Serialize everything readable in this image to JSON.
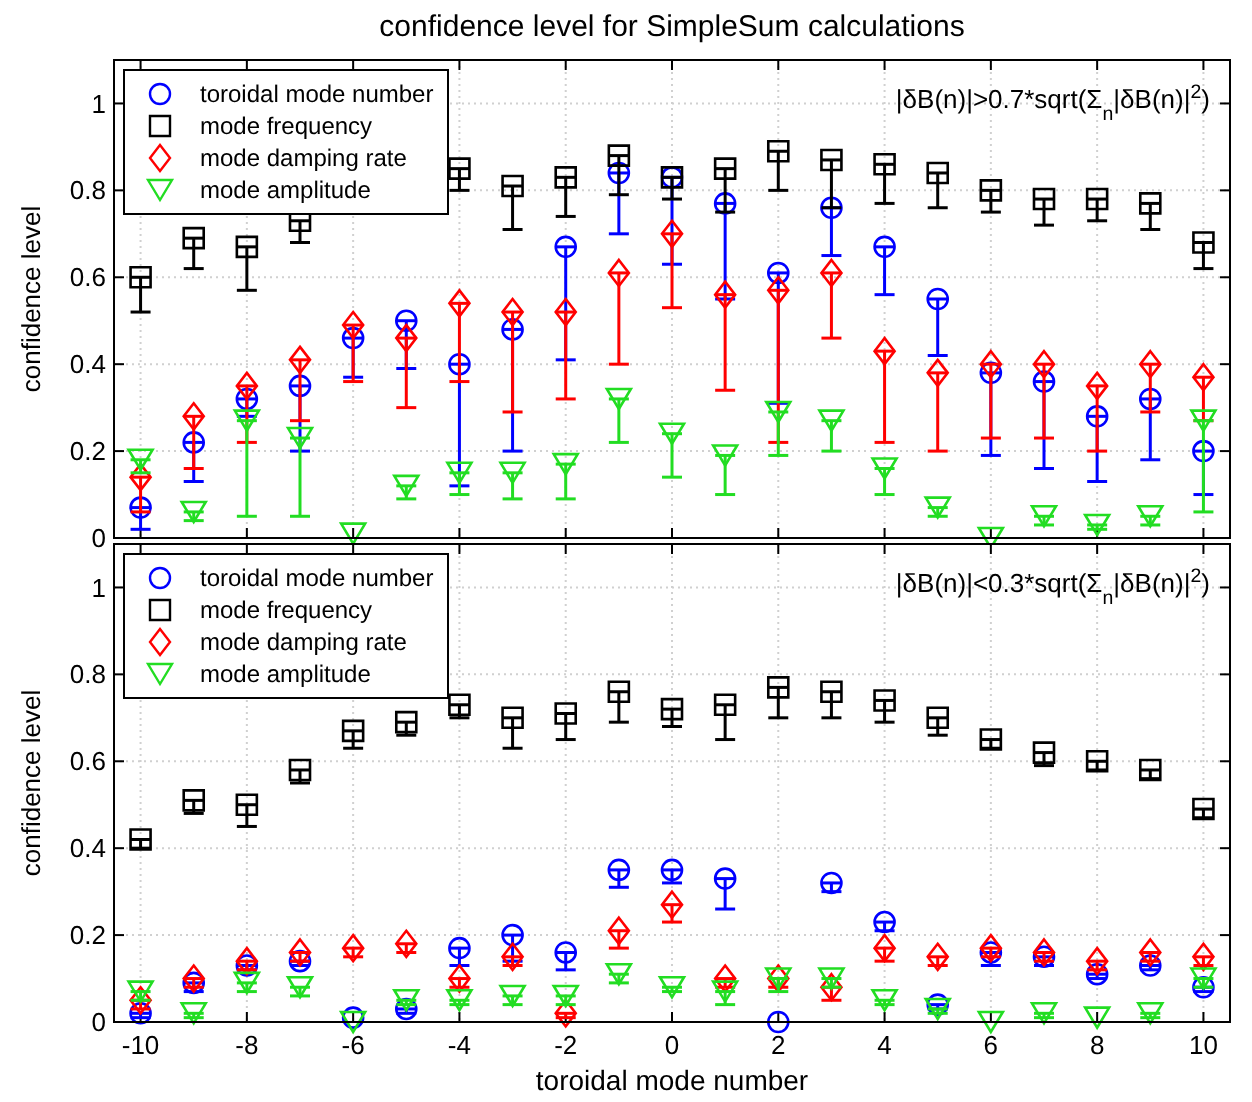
{
  "chart_data": [
    {
      "type": "scatter",
      "title": "confidence level for SimpleSum calculations",
      "ylabel": "confidence level",
      "annotations": [
        "|δB(n)|>0.7*sqrt(Σ$_{n}$|δB(n)|$^{2}$)"
      ],
      "x": [
        -10,
        -9,
        -8,
        -7,
        -6,
        -5,
        -4,
        -3,
        -2,
        -1,
        0,
        1,
        2,
        3,
        4,
        5,
        6,
        7,
        8,
        9,
        10
      ],
      "xlim": [
        -10.5,
        10.5
      ],
      "xticks": [
        -10,
        -8,
        -6,
        -4,
        -2,
        0,
        2,
        4,
        6,
        8,
        10
      ],
      "ylim": [
        0,
        1.1
      ],
      "yticks": [
        0,
        0.2,
        0.4,
        0.6,
        0.8,
        1
      ],
      "grid": true,
      "legend": "top left",
      "tick_labels": "y",
      "series": [
        {
          "name": "toroidal mode number",
          "color": "#0000ff",
          "marker": "circle",
          "values": [
            0.07,
            0.22,
            0.32,
            0.35,
            0.46,
            0.5,
            0.4,
            0.48,
            0.67,
            0.84,
            0.83,
            0.77,
            0.61,
            0.76,
            0.67,
            0.55,
            0.38,
            0.36,
            0.28,
            0.32,
            0.2
          ],
          "errors": [
            [
              0.02,
              0.07
            ],
            [
              0.13,
              0.22
            ],
            [
              0.28,
              0.32
            ],
            [
              0.2,
              0.35
            ],
            [
              0.37,
              0.46
            ],
            [
              0.39,
              0.5
            ],
            [
              0.12,
              0.4
            ],
            [
              0.2,
              0.48
            ],
            [
              0.41,
              0.67
            ],
            [
              0.7,
              0.84
            ],
            [
              0.63,
              0.83
            ],
            [
              0.55,
              0.77
            ],
            [
              0.31,
              0.61
            ],
            [
              0.65,
              0.76
            ],
            [
              0.56,
              0.67
            ],
            [
              0.42,
              0.55
            ],
            [
              0.19,
              0.38
            ],
            [
              0.16,
              0.36
            ],
            [
              0.13,
              0.28
            ],
            [
              0.18,
              0.32
            ],
            [
              0.1,
              0.2
            ]
          ]
        },
        {
          "name": "mode frequency",
          "color": "#000000",
          "marker": "square",
          "values": [
            0.6,
            0.69,
            0.67,
            0.73,
            null,
            null,
            0.85,
            0.81,
            0.83,
            0.88,
            0.83,
            0.85,
            0.89,
            0.87,
            0.86,
            0.84,
            0.8,
            0.78,
            0.78,
            0.77,
            0.68
          ],
          "errors": [
            [
              0.52,
              0.6
            ],
            [
              0.62,
              0.69
            ],
            [
              0.57,
              0.67
            ],
            [
              0.68,
              0.73
            ],
            null,
            null,
            [
              0.8,
              0.85
            ],
            [
              0.71,
              0.81
            ],
            [
              0.74,
              0.83
            ],
            [
              0.79,
              0.88
            ],
            [
              0.78,
              0.83
            ],
            [
              0.75,
              0.85
            ],
            [
              0.8,
              0.89
            ],
            [
              0.76,
              0.87
            ],
            [
              0.77,
              0.86
            ],
            [
              0.76,
              0.84
            ],
            [
              0.75,
              0.8
            ],
            [
              0.72,
              0.78
            ],
            [
              0.73,
              0.78
            ],
            [
              0.71,
              0.77
            ],
            [
              0.62,
              0.68
            ]
          ]
        },
        {
          "name": "mode damping rate",
          "color": "#ff0000",
          "marker": "diamond",
          "values": [
            0.14,
            0.28,
            0.35,
            0.41,
            0.49,
            0.46,
            0.54,
            0.52,
            0.52,
            0.61,
            0.7,
            0.56,
            0.57,
            0.61,
            0.43,
            0.38,
            0.4,
            0.4,
            0.35,
            0.4,
            0.37
          ],
          "errors": [
            [
              0.06,
              0.14
            ],
            [
              0.16,
              0.28
            ],
            [
              0.22,
              0.35
            ],
            [
              0.27,
              0.41
            ],
            [
              0.36,
              0.49
            ],
            [
              0.3,
              0.46
            ],
            [
              0.36,
              0.54
            ],
            [
              0.29,
              0.52
            ],
            [
              0.32,
              0.52
            ],
            [
              0.4,
              0.61
            ],
            [
              0.53,
              0.7
            ],
            [
              0.34,
              0.56
            ],
            [
              0.22,
              0.57
            ],
            [
              0.46,
              0.61
            ],
            [
              0.22,
              0.43
            ],
            [
              0.2,
              0.38
            ],
            [
              0.23,
              0.4
            ],
            [
              0.23,
              0.4
            ],
            [
              0.2,
              0.35
            ],
            [
              0.29,
              0.4
            ],
            [
              0.27,
              0.37
            ]
          ]
        },
        {
          "name": "mode amplitude",
          "color": "#22dd22",
          "marker": "triangle",
          "values": [
            0.18,
            0.06,
            0.27,
            0.23,
            0.01,
            0.12,
            0.15,
            0.15,
            0.17,
            0.32,
            0.24,
            0.19,
            0.29,
            0.27,
            0.16,
            0.07,
            0,
            0.05,
            0.03,
            0.05,
            0.27
          ],
          "errors": [
            [
              0.15,
              0.18
            ],
            [
              0.04,
              0.06
            ],
            [
              0.05,
              0.27
            ],
            [
              0.05,
              0.23
            ],
            null,
            [
              0.09,
              0.12
            ],
            [
              0.1,
              0.15
            ],
            [
              0.09,
              0.15
            ],
            [
              0.09,
              0.17
            ],
            [
              0.22,
              0.32
            ],
            [
              0.14,
              0.24
            ],
            [
              0.1,
              0.19
            ],
            [
              0.19,
              0.29
            ],
            [
              0.2,
              0.27
            ],
            [
              0.1,
              0.16
            ],
            [
              0.05,
              0.07
            ],
            null,
            [
              0.03,
              0.05
            ],
            [
              0.02,
              0.03
            ],
            [
              0.03,
              0.05
            ],
            [
              0.06,
              0.27
            ]
          ]
        }
      ]
    },
    {
      "type": "scatter",
      "xlabel": "toroidal mode number",
      "ylabel": "confidence level",
      "annotations": [
        "|δB(n)|<0.3*sqrt(Σ$_{n}$|δB(n)|$^{2}$)"
      ],
      "x": [
        -10,
        -9,
        -8,
        -7,
        -6,
        -5,
        -4,
        -3,
        -2,
        -1,
        0,
        1,
        2,
        3,
        4,
        5,
        6,
        7,
        8,
        9,
        10
      ],
      "xlim": [
        -10.5,
        10.5
      ],
      "xticks": [
        -10,
        -8,
        -6,
        -4,
        -2,
        0,
        2,
        4,
        6,
        8,
        10
      ],
      "ylim": [
        0,
        1.1
      ],
      "yticks": [
        0,
        0.2,
        0.4,
        0.6,
        0.8,
        1
      ],
      "grid": true,
      "legend": "top left",
      "series": [
        {
          "name": "toroidal mode number",
          "color": "#0000ff",
          "marker": "circle",
          "values": [
            0.02,
            0.09,
            0.13,
            0.14,
            0.01,
            0.03,
            0.17,
            0.2,
            0.16,
            0.35,
            0.35,
            0.33,
            0,
            0.32,
            0.23,
            0.04,
            0.16,
            0.15,
            0.11,
            0.13,
            0.08
          ],
          "errors": [
            [
              0.01,
              0.02
            ],
            [
              0.07,
              0.09
            ],
            [
              0.12,
              0.13
            ],
            [
              0.13,
              0.14
            ],
            null,
            [
              0.02,
              0.03
            ],
            [
              0.13,
              0.17
            ],
            [
              0.14,
              0.2
            ],
            [
              0.12,
              0.16
            ],
            [
              0.31,
              0.35
            ],
            [
              0.32,
              0.35
            ],
            [
              0.26,
              0.33
            ],
            null,
            [
              0.3,
              0.32
            ],
            [
              0.21,
              0.23
            ],
            [
              0.03,
              0.04
            ],
            [
              0.13,
              0.16
            ],
            [
              0.13,
              0.15
            ],
            [
              0.1,
              0.11
            ],
            [
              0.12,
              0.13
            ],
            [
              0.07,
              0.08
            ]
          ]
        },
        {
          "name": "mode frequency",
          "color": "#000000",
          "marker": "square",
          "values": [
            0.42,
            0.51,
            0.5,
            0.58,
            0.67,
            0.69,
            0.73,
            0.7,
            0.71,
            0.76,
            0.72,
            0.73,
            0.77,
            0.76,
            0.74,
            0.7,
            0.65,
            0.62,
            0.6,
            0.58,
            0.49
          ],
          "errors": [
            [
              0.4,
              0.42
            ],
            [
              0.48,
              0.51
            ],
            [
              0.45,
              0.5
            ],
            [
              0.55,
              0.58
            ],
            [
              0.63,
              0.67
            ],
            [
              0.66,
              0.69
            ],
            [
              0.7,
              0.73
            ],
            [
              0.63,
              0.7
            ],
            [
              0.65,
              0.71
            ],
            [
              0.69,
              0.76
            ],
            [
              0.68,
              0.72
            ],
            [
              0.65,
              0.73
            ],
            [
              0.7,
              0.77
            ],
            [
              0.7,
              0.76
            ],
            [
              0.69,
              0.74
            ],
            [
              0.66,
              0.7
            ],
            [
              0.63,
              0.65
            ],
            [
              0.59,
              0.62
            ],
            [
              0.58,
              0.6
            ],
            [
              0.56,
              0.58
            ],
            [
              0.47,
              0.49
            ]
          ]
        },
        {
          "name": "mode damping rate",
          "color": "#ff0000",
          "marker": "diamond",
          "values": [
            0.05,
            0.1,
            0.14,
            0.16,
            0.17,
            0.18,
            0.1,
            0.15,
            0.02,
            0.21,
            0.27,
            0.1,
            0.1,
            0.08,
            0.17,
            0.15,
            0.17,
            0.16,
            0.14,
            0.16,
            0.15
          ],
          "errors": [
            [
              0.03,
              0.05
            ],
            [
              0.08,
              0.1
            ],
            [
              0.12,
              0.14
            ],
            [
              0.14,
              0.16
            ],
            [
              0.15,
              0.17
            ],
            [
              0.16,
              0.18
            ],
            [
              0.08,
              0.1
            ],
            [
              0.13,
              0.15
            ],
            [
              0.01,
              0.02
            ],
            [
              0.17,
              0.21
            ],
            [
              0.23,
              0.27
            ],
            [
              0.08,
              0.1
            ],
            [
              0.08,
              0.1
            ],
            [
              0.05,
              0.08
            ],
            [
              0.14,
              0.17
            ],
            [
              0.13,
              0.15
            ],
            [
              0.15,
              0.17
            ],
            [
              0.14,
              0.16
            ],
            [
              0.12,
              0.14
            ],
            [
              0.14,
              0.16
            ],
            [
              0.13,
              0.15
            ]
          ]
        },
        {
          "name": "mode amplitude",
          "color": "#22dd22",
          "marker": "triangle",
          "values": [
            0.07,
            0.02,
            0.09,
            0.08,
            0,
            0.05,
            0.05,
            0.06,
            0.06,
            0.11,
            0.08,
            0.07,
            0.1,
            0.1,
            0.05,
            0.03,
            0,
            0.02,
            0.01,
            0.02,
            0.1
          ],
          "errors": [
            [
              0.05,
              0.07
            ],
            [
              0.01,
              0.02
            ],
            [
              0.07,
              0.09
            ],
            [
              0.06,
              0.08
            ],
            null,
            [
              0.04,
              0.05
            ],
            [
              0.04,
              0.05
            ],
            [
              0.04,
              0.06
            ],
            [
              0.04,
              0.06
            ],
            [
              0.09,
              0.11
            ],
            [
              0.07,
              0.08
            ],
            [
              0.04,
              0.07
            ],
            [
              0.07,
              0.1
            ],
            [
              0.08,
              0.1
            ],
            [
              0.04,
              0.05
            ],
            [
              0.02,
              0.03
            ],
            null,
            [
              0.01,
              0.02
            ],
            null,
            [
              0.01,
              0.02
            ],
            [
              0.08,
              0.1
            ]
          ]
        }
      ]
    }
  ]
}
